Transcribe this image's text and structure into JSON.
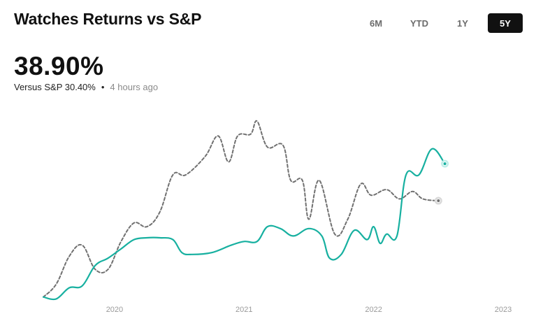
{
  "header": {
    "title": "Watches Returns vs S&P",
    "ranges": [
      "6M",
      "YTD",
      "1Y",
      "5Y"
    ],
    "active_range": "5Y"
  },
  "summary": {
    "return_value": "38.90%",
    "comparison": "Versus S&P 30.40%",
    "separator": "•",
    "updated": "4 hours ago"
  },
  "colors": {
    "watches": "#17b0a0",
    "sp": "#707070",
    "active_button": "#111111"
  },
  "chart_data": {
    "type": "line",
    "xlim": [
      2019.45,
      2023.0
    ],
    "ylim": [
      -2,
      100
    ],
    "x_ticks": [
      {
        "value": 2020,
        "label": "2020"
      },
      {
        "value": 2021,
        "label": "2021"
      },
      {
        "value": 2022,
        "label": "2022"
      },
      {
        "value": 2023,
        "label": "2023"
      }
    ],
    "grid": false,
    "series": [
      {
        "style": "solid",
        "color": "#17b0a0",
        "points": [
          [
            2019.45,
            0
          ],
          [
            2019.55,
            -1
          ],
          [
            2019.65,
            5
          ],
          [
            2019.75,
            6
          ],
          [
            2019.85,
            17
          ],
          [
            2019.95,
            21
          ],
          [
            2020.05,
            26
          ],
          [
            2020.15,
            31
          ],
          [
            2020.25,
            32
          ],
          [
            2020.35,
            32
          ],
          [
            2020.45,
            31
          ],
          [
            2020.52,
            24
          ],
          [
            2020.6,
            23
          ],
          [
            2020.75,
            24
          ],
          [
            2020.9,
            28
          ],
          [
            2021.0,
            30
          ],
          [
            2021.1,
            30
          ],
          [
            2021.18,
            38
          ],
          [
            2021.28,
            37
          ],
          [
            2021.38,
            33
          ],
          [
            2021.5,
            37
          ],
          [
            2021.6,
            33
          ],
          [
            2021.66,
            21
          ],
          [
            2021.75,
            23
          ],
          [
            2021.85,
            36
          ],
          [
            2021.95,
            31
          ],
          [
            2022.0,
            38
          ],
          [
            2022.05,
            29
          ],
          [
            2022.1,
            34
          ],
          [
            2022.18,
            33
          ],
          [
            2022.25,
            66
          ],
          [
            2022.35,
            66
          ],
          [
            2022.45,
            80
          ],
          [
            2022.55,
            72
          ]
        ]
      },
      {
        "style": "dashed",
        "color": "#707070",
        "points": [
          [
            2019.45,
            0
          ],
          [
            2019.55,
            7
          ],
          [
            2019.65,
            22
          ],
          [
            2019.75,
            28
          ],
          [
            2019.85,
            15
          ],
          [
            2019.95,
            15
          ],
          [
            2020.05,
            30
          ],
          [
            2020.15,
            40
          ],
          [
            2020.25,
            38
          ],
          [
            2020.35,
            46
          ],
          [
            2020.45,
            66
          ],
          [
            2020.55,
            66
          ],
          [
            2020.7,
            76
          ],
          [
            2020.8,
            87
          ],
          [
            2020.88,
            73
          ],
          [
            2020.95,
            87
          ],
          [
            2021.05,
            88
          ],
          [
            2021.1,
            95
          ],
          [
            2021.18,
            81
          ],
          [
            2021.3,
            82
          ],
          [
            2021.36,
            63
          ],
          [
            2021.45,
            63
          ],
          [
            2021.5,
            42
          ],
          [
            2021.58,
            63
          ],
          [
            2021.7,
            34
          ],
          [
            2021.8,
            42
          ],
          [
            2021.9,
            61
          ],
          [
            2021.98,
            55
          ],
          [
            2022.1,
            58
          ],
          [
            2022.2,
            53
          ],
          [
            2022.3,
            57
          ],
          [
            2022.38,
            53
          ],
          [
            2022.5,
            52
          ]
        ]
      }
    ]
  }
}
